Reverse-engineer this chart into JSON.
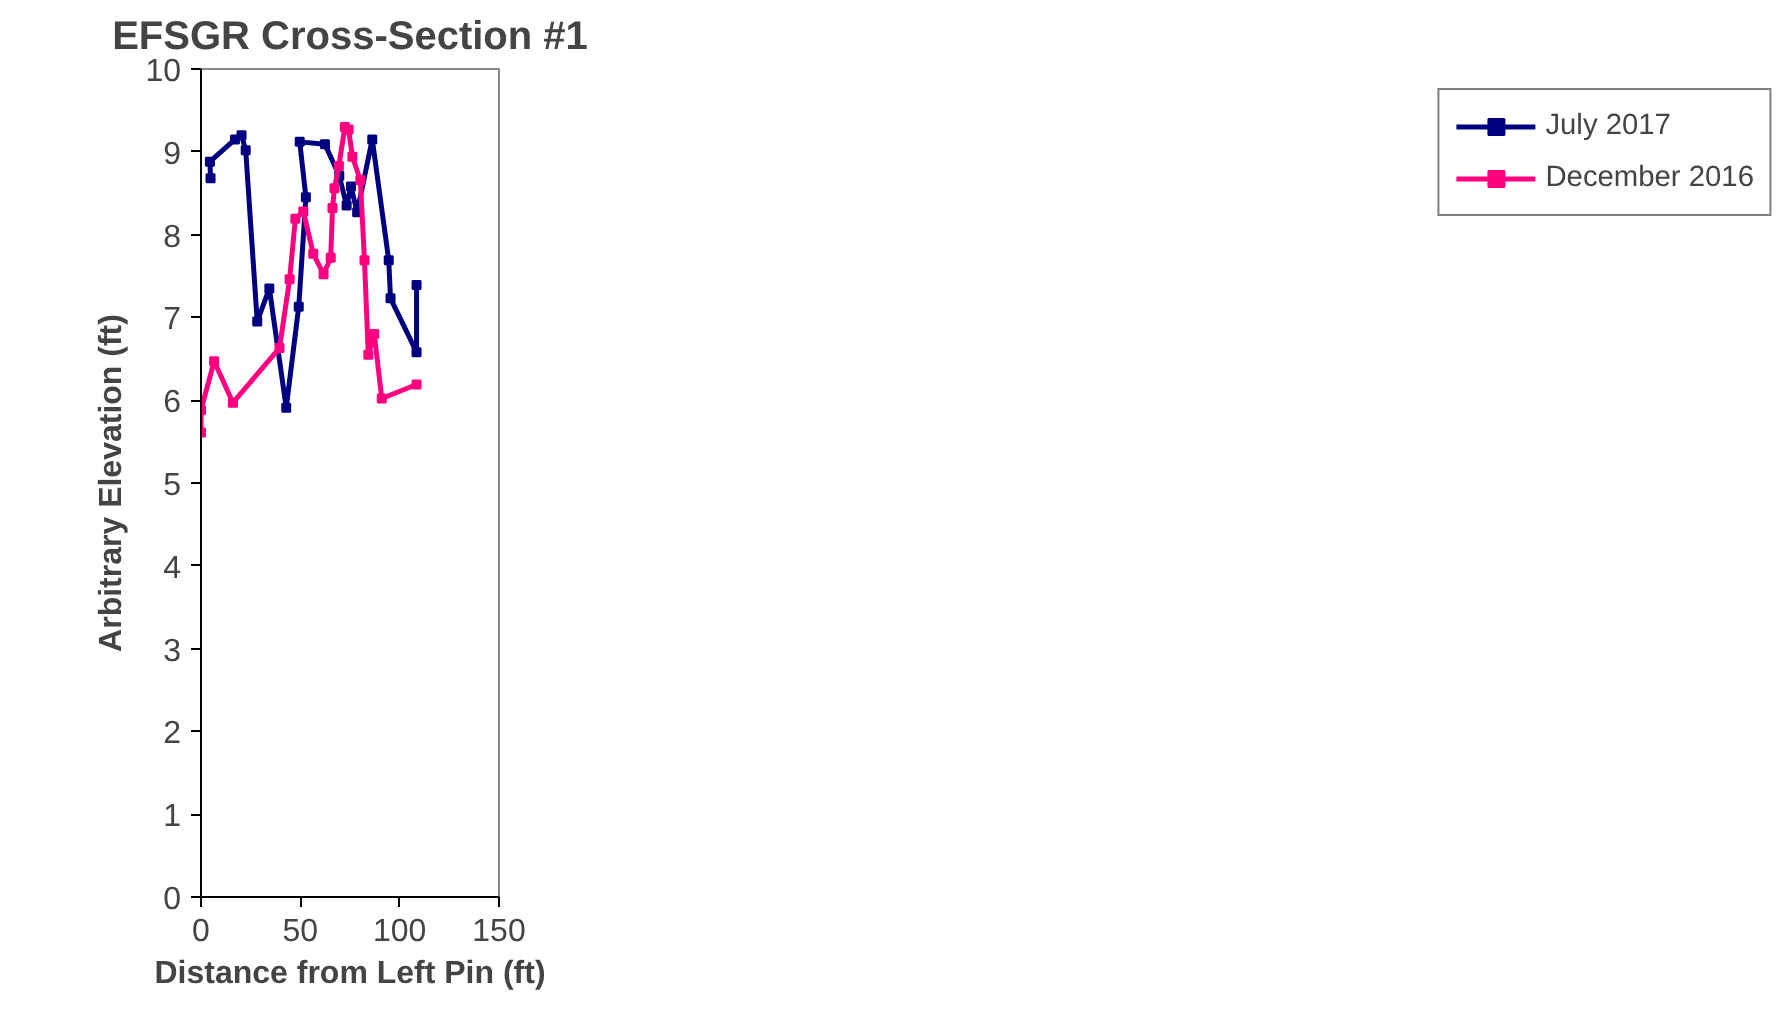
{
  "chart_data": {
    "type": "line",
    "title": "EFSGR Cross-Section #1",
    "xlabel": "Distance from Left Pin (ft)",
    "ylabel": "Arbitrary Elevation (ft)",
    "xlim": [
      0,
      150
    ],
    "xticks": [
      0,
      50,
      100,
      150
    ],
    "ylim": [
      0,
      10
    ],
    "yticks": [
      0,
      1,
      2,
      3,
      4,
      5,
      6,
      7,
      8,
      9,
      10
    ],
    "grid": false,
    "legend": "right",
    "marker": "square",
    "line_style": "solid",
    "series": [
      {
        "name": "July 2017",
        "color": "#000080",
        "x": [
          4.8,
          4.5,
          17.1,
          20.4,
          22.5,
          28.3,
          34.4,
          42.9,
          49.2,
          52.8,
          49.7,
          62.4,
          69.6,
          73.3,
          75.5,
          78.6,
          86.2,
          94.5,
          95.4,
          108.5,
          108.5
        ],
        "values": [
          8.68,
          8.88,
          9.15,
          9.2,
          9.02,
          6.95,
          7.35,
          5.91,
          7.13,
          8.45,
          9.12,
          9.09,
          8.71,
          8.35,
          8.58,
          8.27,
          9.15,
          7.69,
          7.23,
          6.58,
          7.39
        ]
      },
      {
        "name": "December 2016",
        "color": "#ff0080",
        "x": [
          0,
          0,
          6.6,
          16.1,
          39.5,
          44.6,
          47.5,
          51.5,
          56.5,
          61.7,
          65.3,
          66.2,
          67.2,
          69.4,
          72.4,
          74.3,
          76.2,
          80.2,
          82.3,
          84.2,
          87.2,
          91.0,
          108.5
        ],
        "values": [
          5.61,
          5.88,
          6.47,
          5.97,
          6.63,
          7.46,
          8.19,
          8.28,
          7.77,
          7.52,
          7.72,
          8.32,
          8.56,
          8.83,
          9.3,
          9.27,
          8.94,
          8.66,
          7.69,
          6.55,
          6.8,
          6.02,
          6.19
        ]
      }
    ]
  }
}
